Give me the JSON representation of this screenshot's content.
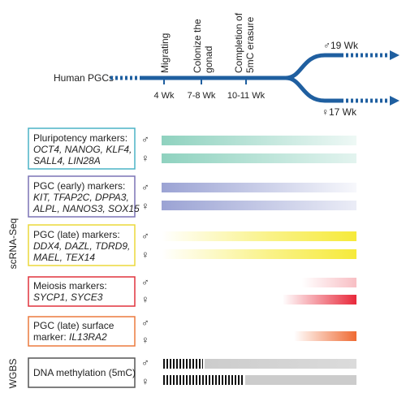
{
  "timeline": {
    "origin_label": "Human PGCs",
    "events": [
      {
        "label": "Migrating",
        "week": "4 Wk"
      },
      {
        "label": "Colonize the gonad",
        "week": "7-8 Wk"
      },
      {
        "label": "Completion of 5mC erasure",
        "week": "10-11 Wk"
      }
    ],
    "male_branch": {
      "symbol": "♂",
      "week": "19 Wk"
    },
    "female_branch": {
      "symbol": "♀",
      "week": "17 Wk"
    },
    "line_color": "#1f5fa0"
  },
  "section_labels": {
    "scrna": "scRNA-Seq",
    "wgbs": "WGBS"
  },
  "sex_symbols": {
    "male": "♂",
    "female": "♀"
  },
  "marker_groups": [
    {
      "title": "Pluripotency markers:",
      "genes_line1": "OCT4, NANOG, KLF4,",
      "genes_line2": "SALL4, LIN28A",
      "border_color": "#4bb3c5",
      "bar_color": "#8fd2bf",
      "trend": "decreasing"
    },
    {
      "title": "PGC (early) markers:",
      "genes_line1": "KIT, TFAP2C, DPPA3,",
      "genes_line2": "ALPL, NANOS3, SOX15",
      "border_color": "#7b74b5",
      "bar_color": "#9ba3d4",
      "trend": "decreasing"
    },
    {
      "title": "PGC (late) markers:",
      "genes_line1": "DDX4, DAZL, TDRD9,",
      "genes_line2": "MAEL, TEX14",
      "border_color": "#ecd93a",
      "bar_color": "#f6ea3a",
      "trend": "increasing"
    },
    {
      "title": "Meiosis markers:",
      "genes_line1": "SYCP1, SYCE3",
      "genes_line2": "",
      "border_color": "#e0333d",
      "bar_color": "#e8283a",
      "trend": "late increase"
    },
    {
      "title": "PGC (late) surface",
      "genes_prefix": "marker: ",
      "genes_line1": "IL13RA2",
      "genes_line2": "",
      "border_color": "#ec7a3e",
      "bar_color": "#ef6a32",
      "trend": "late increase"
    }
  ],
  "methylation": {
    "label": "DNA methylation (5mC)",
    "border_color": "#555555",
    "bar_color": "#cccccc"
  }
}
